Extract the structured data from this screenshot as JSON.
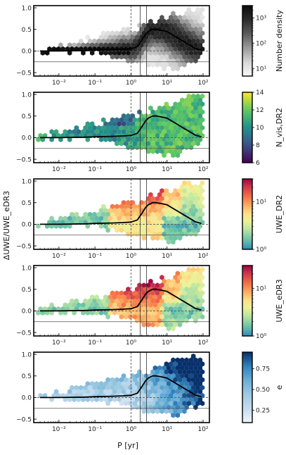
{
  "figure": {
    "xlabel": "P [yr]",
    "ylabel": "ΔUWE/UWE_eDR3"
  },
  "chart_data": [
    {
      "type": "heatmap",
      "panel": 1,
      "colormap": "greys",
      "colorbar_label": "Number density",
      "colorbar_scale": "log",
      "colorbar_ticks": [
        "10¹",
        "10²",
        "10³"
      ],
      "colorbar_range": [
        5,
        3000
      ],
      "xscale": "log",
      "xlim": [
        0.002,
        150
      ],
      "ylim": [
        -0.58,
        1.05
      ],
      "xticks": [
        "10⁻²",
        "10⁻¹",
        "10⁰",
        "10¹",
        "10²"
      ],
      "yticks": [
        "−0.5",
        "0.0",
        "0.5",
        "1.0"
      ],
      "vlines_solid": [
        1.8,
        2.7
      ],
      "vline_dashed": 1.0,
      "hline_dashed": 0.0,
      "hline_solid": -0.25,
      "median_curve": {
        "x": [
          0.003,
          0.01,
          0.05,
          0.1,
          0.3,
          0.6,
          1.0,
          1.5,
          2.0,
          2.5,
          3.0,
          4.0,
          5.0,
          7.0,
          10,
          20,
          40,
          60,
          90
        ],
        "y": [
          0.0,
          0.0,
          0.01,
          0.02,
          0.03,
          0.04,
          0.05,
          0.1,
          0.25,
          0.38,
          0.45,
          0.5,
          0.5,
          0.48,
          0.45,
          0.3,
          0.15,
          0.06,
          0.02
        ]
      }
    },
    {
      "type": "heatmap",
      "panel": 2,
      "colormap": "viridis",
      "colorbar_label": "N_vis,DR2",
      "colorbar_scale": "linear",
      "colorbar_ticks": [
        "6",
        "8",
        "10",
        "12",
        "14"
      ],
      "colorbar_range": [
        6,
        14
      ],
      "xscale": "log",
      "xlim": [
        0.002,
        150
      ],
      "ylim": [
        -0.58,
        1.05
      ],
      "xticks": [
        "10⁻²",
        "10⁻¹",
        "10⁰",
        "10¹",
        "10²"
      ],
      "yticks": [
        "−0.5",
        "0.0",
        "0.5",
        "1.0"
      ],
      "vlines_solid": [
        1.8,
        2.7
      ],
      "vline_dashed": 1.0,
      "hline_dashed": 0.0,
      "hline_solid": -0.25,
      "median_curve": {
        "x": [
          0.003,
          0.01,
          0.05,
          0.1,
          0.3,
          0.6,
          1.0,
          1.5,
          2.0,
          2.5,
          3.0,
          4.0,
          5.0,
          7.0,
          10,
          20,
          40,
          60,
          90
        ],
        "y": [
          0.0,
          0.0,
          0.01,
          0.02,
          0.03,
          0.04,
          0.05,
          0.1,
          0.25,
          0.38,
          0.45,
          0.5,
          0.5,
          0.48,
          0.45,
          0.3,
          0.15,
          0.06,
          0.02
        ]
      }
    },
    {
      "type": "heatmap",
      "panel": 3,
      "colormap": "spectral_r",
      "colorbar_label": "UWE_DR2",
      "colorbar_scale": "log",
      "colorbar_ticks": [
        "10⁰",
        "10¹"
      ],
      "colorbar_range": [
        1,
        30
      ],
      "xscale": "log",
      "xlim": [
        0.002,
        150
      ],
      "ylim": [
        -0.58,
        1.05
      ],
      "xticks": [
        "10⁻²",
        "10⁻¹",
        "10⁰",
        "10¹",
        "10²"
      ],
      "yticks": [
        "−0.5",
        "0.0",
        "0.5",
        "1.0"
      ],
      "vlines_solid": [
        1.8,
        2.7
      ],
      "vline_dashed": 1.0,
      "hline_dashed": 0.0,
      "hline_solid": -0.25,
      "median_curve": {
        "x": [
          0.003,
          0.01,
          0.05,
          0.1,
          0.3,
          0.6,
          1.0,
          1.5,
          2.0,
          2.5,
          3.0,
          4.0,
          5.0,
          7.0,
          10,
          20,
          40,
          60,
          90
        ],
        "y": [
          0.0,
          0.0,
          0.01,
          0.02,
          0.03,
          0.04,
          0.05,
          0.1,
          0.25,
          0.38,
          0.45,
          0.5,
          0.5,
          0.48,
          0.45,
          0.3,
          0.15,
          0.06,
          0.02
        ]
      }
    },
    {
      "type": "heatmap",
      "panel": 4,
      "colormap": "spectral_r",
      "colorbar_label": "UWE_eDR3",
      "colorbar_scale": "log",
      "colorbar_ticks": [
        "10⁰",
        "10¹"
      ],
      "colorbar_range": [
        1,
        30
      ],
      "xscale": "log",
      "xlim": [
        0.002,
        150
      ],
      "ylim": [
        -0.58,
        1.05
      ],
      "xticks": [
        "10⁻²",
        "10⁻¹",
        "10⁰",
        "10¹",
        "10²"
      ],
      "yticks": [
        "−0.5",
        "0.0",
        "0.5",
        "1.0"
      ],
      "vlines_solid": [
        1.8,
        2.7
      ],
      "vline_dashed": 1.0,
      "hline_dashed": 0.0,
      "hline_solid": -0.25,
      "median_curve": {
        "x": [
          0.003,
          0.01,
          0.05,
          0.1,
          0.3,
          0.6,
          1.0,
          1.5,
          2.0,
          2.5,
          3.0,
          4.0,
          5.0,
          7.0,
          10,
          20,
          40,
          60,
          90
        ],
        "y": [
          0.0,
          0.0,
          0.01,
          0.02,
          0.03,
          0.04,
          0.05,
          0.1,
          0.25,
          0.38,
          0.45,
          0.5,
          0.5,
          0.48,
          0.45,
          0.3,
          0.15,
          0.06,
          0.02
        ]
      }
    },
    {
      "type": "heatmap",
      "panel": 5,
      "colormap": "blues",
      "colorbar_label": "e",
      "colorbar_scale": "linear",
      "colorbar_ticks": [
        "0.25",
        "0.50",
        "0.75"
      ],
      "colorbar_range": [
        0.1,
        0.95
      ],
      "xscale": "log",
      "xlim": [
        0.002,
        150
      ],
      "ylim": [
        -0.58,
        1.05
      ],
      "xticks": [
        "10⁻²",
        "10⁻¹",
        "10⁰",
        "10¹",
        "10²"
      ],
      "yticks": [
        "−0.5",
        "0.0",
        "0.5",
        "1.0"
      ],
      "vlines_solid": [
        1.8,
        2.7
      ],
      "vline_dashed": 1.0,
      "hline_dashed": 0.0,
      "hline_solid": -0.25,
      "median_curve": {
        "x": [
          0.003,
          0.01,
          0.05,
          0.1,
          0.3,
          0.6,
          1.0,
          1.5,
          2.0,
          2.5,
          3.0,
          4.0,
          5.0,
          7.0,
          10,
          20,
          40,
          60,
          90
        ],
        "y": [
          0.0,
          0.0,
          0.01,
          0.02,
          0.03,
          0.04,
          0.05,
          0.1,
          0.25,
          0.38,
          0.45,
          0.5,
          0.5,
          0.48,
          0.45,
          0.3,
          0.15,
          0.06,
          0.02
        ]
      }
    }
  ]
}
